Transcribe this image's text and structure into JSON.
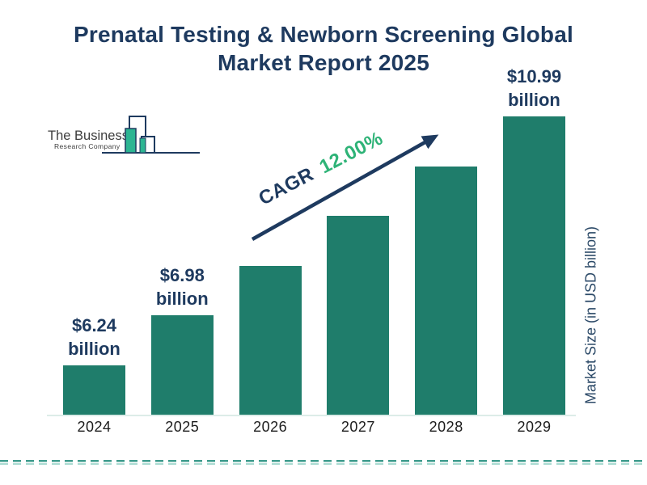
{
  "title": {
    "line1": "Prenatal Testing & Newborn Screening Global",
    "line2": "Market Report 2025"
  },
  "logo": {
    "name_line1": "The Business",
    "name_line2": "Research Company"
  },
  "cagr": {
    "prefix": "CAGR",
    "value": "12.00%"
  },
  "y_axis_label": "Market Size (in USD billion)",
  "colors": {
    "navy": "#1e3a5f",
    "green_accent": "#2eb377",
    "bar_teal": "#1f7d6b",
    "logo_teal": "#2db592",
    "dash_dark": "#3f9c8e",
    "dash_light": "#aadbd2"
  },
  "chart_data": {
    "type": "bar",
    "title": "Prenatal Testing & Newborn Screening Global Market Report 2025",
    "categories": [
      "2024",
      "2025",
      "2026",
      "2027",
      "2028",
      "2029"
    ],
    "values": [
      6.24,
      6.98,
      7.82,
      8.76,
      9.81,
      10.99
    ],
    "labeled_values": {
      "2024": "$6.24 billion",
      "2025": "$6.98 billion",
      "2029": "$10.99 billion"
    },
    "value_labels": [
      {
        "index": 0,
        "amount": "$6.24",
        "unit": "billion"
      },
      {
        "index": 1,
        "amount": "$6.98",
        "unit": "billion"
      },
      {
        "index": 5,
        "amount": "$10.99",
        "unit": "billion"
      }
    ],
    "cagr": "12.00%",
    "xlabel": "",
    "ylabel": "Market Size (in USD billion)",
    "unit": "USD billion",
    "grid": false,
    "legend": false,
    "bar_color": "#1f7d6b"
  }
}
